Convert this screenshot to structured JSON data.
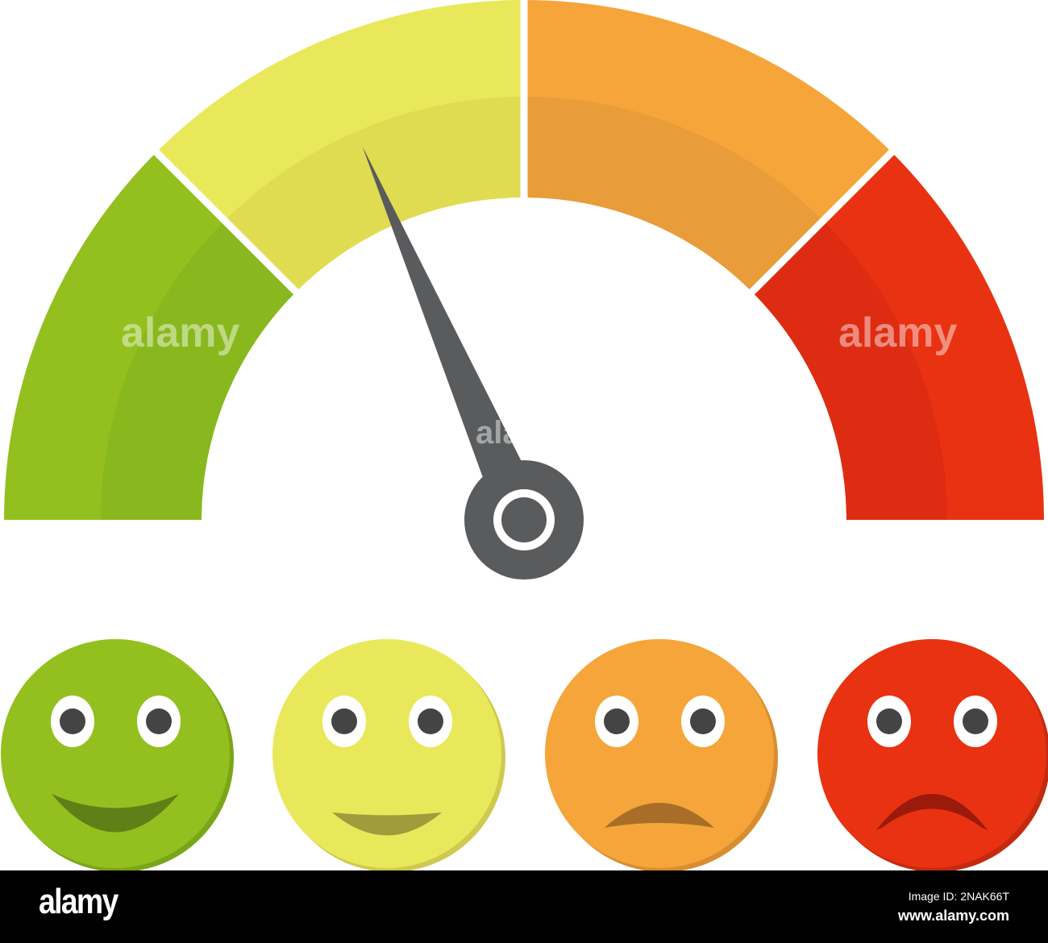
{
  "gauge": {
    "segments": [
      {
        "level": "good",
        "color": "#93c01f",
        "inner_color": "#89b81e"
      },
      {
        "level": "fair",
        "color": "#e9e85a",
        "inner_color": "#e0dc52"
      },
      {
        "level": "poor",
        "color": "#f5a53a",
        "inner_color": "#e89c3a"
      },
      {
        "level": "bad",
        "color": "#e83212",
        "inner_color": "#de2c12"
      }
    ],
    "needle_value": 0.37,
    "needle_color": "#5a5b5d"
  },
  "faces": [
    {
      "mood": "happy",
      "color": "#93c01f",
      "shadow": "#7aa518",
      "mouth": "#5f7f18"
    },
    {
      "mood": "slightly-happy",
      "color": "#e9e85a",
      "shadow": "#cfc950",
      "mouth": "#a09c3c"
    },
    {
      "mood": "slightly-sad",
      "color": "#f5a53a",
      "shadow": "#d88e30",
      "mouth": "#a86e28"
    },
    {
      "mood": "sad",
      "color": "#e83212",
      "shadow": "#c42a10",
      "mouth": "#9a1a0c"
    }
  ],
  "watermark": {
    "brand": "alamy",
    "image_id": "Image ID: 2NAK66T",
    "site": "www.alamy.com"
  }
}
